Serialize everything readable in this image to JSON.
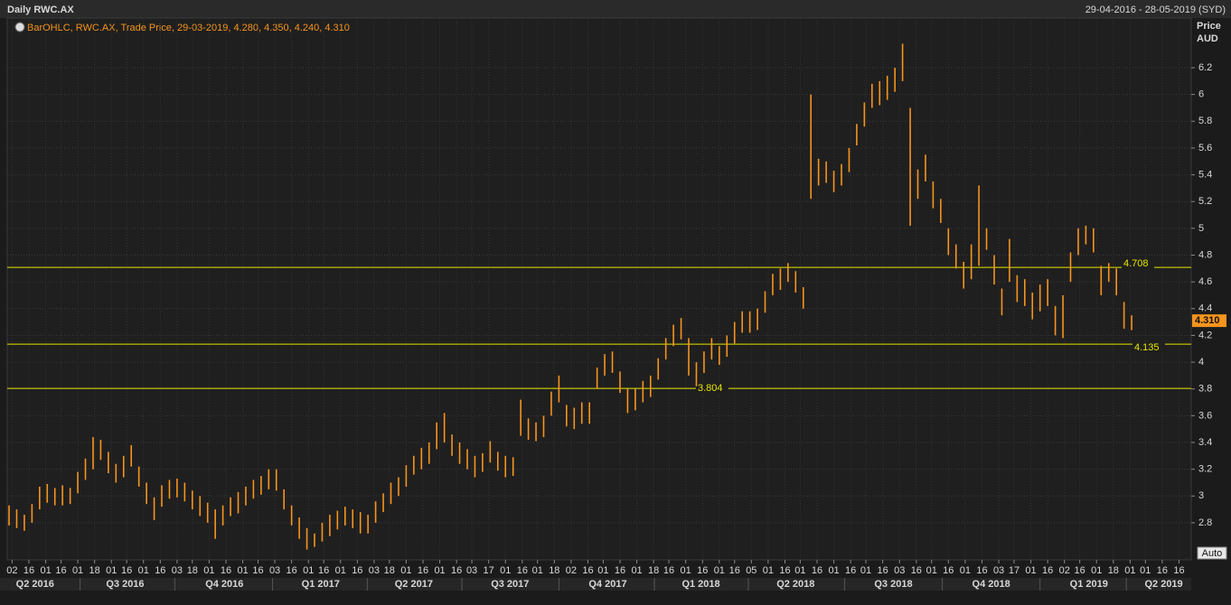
{
  "chart_data": {
    "type": "ohlc",
    "title": "Daily RWC.AX",
    "date_range": "29-04-2016 - 28-05-2019 (SYD)",
    "legend": "BarOHLC, RWC.AX, Trade Price, 29-03-2019, 4.280, 4.350, 4.240, 4.310",
    "y_axis_label": [
      "Price",
      "AUD"
    ],
    "auto_button": "Auto",
    "color": "#f7941d",
    "line_color": "#e6e600",
    "grid": true,
    "ylim": [
      2.523,
      6.571
    ],
    "yticks": [
      2.8,
      3,
      3.2,
      3.4,
      3.6,
      3.8,
      4,
      4.2,
      4.4,
      4.6,
      4.8,
      5,
      5.2,
      5.4,
      5.6,
      5.8,
      6,
      6.2
    ],
    "xlim": [
      -1.2,
      774
    ],
    "xticks": [
      {
        "value": 2,
        "label": "02"
      },
      {
        "value": 13,
        "label": "16"
      },
      {
        "value": 24,
        "label": "01"
      },
      {
        "value": 34,
        "label": "16"
      },
      {
        "value": 45,
        "label": "01"
      },
      {
        "value": 56,
        "label": "18"
      },
      {
        "value": 67,
        "label": "01"
      },
      {
        "value": 77,
        "label": "16"
      },
      {
        "value": 88,
        "label": "01"
      },
      {
        "value": 99,
        "label": "16"
      },
      {
        "value": 110,
        "label": "03"
      },
      {
        "value": 120,
        "label": "18"
      },
      {
        "value": 131,
        "label": "01"
      },
      {
        "value": 142,
        "label": "16"
      },
      {
        "value": 153,
        "label": "01"
      },
      {
        "value": 163,
        "label": "16"
      },
      {
        "value": 174,
        "label": "03"
      },
      {
        "value": 185,
        "label": "16"
      },
      {
        "value": 196,
        "label": "01"
      },
      {
        "value": 206,
        "label": "16"
      },
      {
        "value": 217,
        "label": "01"
      },
      {
        "value": 228,
        "label": "16"
      },
      {
        "value": 239,
        "label": "03"
      },
      {
        "value": 249,
        "label": "18"
      },
      {
        "value": 260,
        "label": "01"
      },
      {
        "value": 271,
        "label": "16"
      },
      {
        "value": 282,
        "label": "01"
      },
      {
        "value": 293,
        "label": "16"
      },
      {
        "value": 303,
        "label": "03"
      },
      {
        "value": 314,
        "label": "17"
      },
      {
        "value": 325,
        "label": "01"
      },
      {
        "value": 336,
        "label": "16"
      },
      {
        "value": 346,
        "label": "01"
      },
      {
        "value": 357,
        "label": "18"
      },
      {
        "value": 368,
        "label": "02"
      },
      {
        "value": 379,
        "label": "16"
      },
      {
        "value": 389,
        "label": "01"
      },
      {
        "value": 400,
        "label": "16"
      },
      {
        "value": 411,
        "label": "01"
      },
      {
        "value": 422,
        "label": "18"
      },
      {
        "value": 432,
        "label": "16"
      },
      {
        "value": 443,
        "label": "01"
      },
      {
        "value": 454,
        "label": "16"
      },
      {
        "value": 465,
        "label": "01"
      },
      {
        "value": 475,
        "label": "16"
      },
      {
        "value": 486,
        "label": "05"
      },
      {
        "value": 497,
        "label": "01"
      },
      {
        "value": 508,
        "label": "16"
      },
      {
        "value": 518,
        "label": "01"
      },
      {
        "value": 529,
        "label": "16"
      },
      {
        "value": 540,
        "label": "01"
      },
      {
        "value": 551,
        "label": "16"
      },
      {
        "value": 561,
        "label": "01"
      },
      {
        "value": 572,
        "label": "16"
      },
      {
        "value": 583,
        "label": "03"
      },
      {
        "value": 594,
        "label": "16"
      },
      {
        "value": 604,
        "label": "01"
      },
      {
        "value": 615,
        "label": "16"
      },
      {
        "value": 626,
        "label": "01"
      },
      {
        "value": 637,
        "label": "16"
      },
      {
        "value": 648,
        "label": "03"
      },
      {
        "value": 658,
        "label": "17"
      },
      {
        "value": 669,
        "label": "01"
      },
      {
        "value": 680,
        "label": "16"
      },
      {
        "value": 691,
        "label": "02"
      },
      {
        "value": 701,
        "label": "16"
      },
      {
        "value": 712,
        "label": "01"
      },
      {
        "value": 723,
        "label": "18"
      },
      {
        "value": 734,
        "label": "01"
      },
      {
        "value": 744,
        "label": "01"
      },
      {
        "value": 755,
        "label": "16"
      },
      {
        "value": 766,
        "label": "16"
      }
    ],
    "quarter_ticks": [
      {
        "value": 17,
        "label": "Q2 2016"
      },
      {
        "value": 76,
        "label": "Q3 2016"
      },
      {
        "value": 141,
        "label": "Q4 2016"
      },
      {
        "value": 204,
        "label": "Q1 2017"
      },
      {
        "value": 265,
        "label": "Q2 2017"
      },
      {
        "value": 328,
        "label": "Q3 2017"
      },
      {
        "value": 392,
        "label": "Q4 2017"
      },
      {
        "value": 453,
        "label": "Q1 2018"
      },
      {
        "value": 515,
        "label": "Q2 2018"
      },
      {
        "value": 579,
        "label": "Q3 2018"
      },
      {
        "value": 643,
        "label": "Q4 2018"
      },
      {
        "value": 707,
        "label": "Q1 2019"
      },
      {
        "value": 756,
        "label": "Q2 2019"
      }
    ],
    "hlines": [
      4.708,
      4.135,
      3.804
    ],
    "last_price": {
      "value": 4.31,
      "label": "4.310"
    },
    "series": [
      {
        "name": "RWC.AX",
        "x": [
          0,
          5,
          10,
          15,
          20,
          25,
          30,
          35,
          40,
          45,
          50,
          55,
          60,
          65,
          70,
          75,
          80,
          85,
          90,
          95,
          100,
          105,
          110,
          115,
          120,
          125,
          130,
          135,
          140,
          145,
          150,
          155,
          160,
          165,
          170,
          175,
          180,
          185,
          190,
          195,
          200,
          205,
          210,
          215,
          220,
          225,
          230,
          235,
          240,
          245,
          250,
          255,
          260,
          265,
          270,
          275,
          280,
          285,
          290,
          295,
          300,
          305,
          310,
          315,
          320,
          325,
          330,
          335,
          340,
          345,
          350,
          355,
          360,
          365,
          370,
          375,
          380,
          385,
          390,
          395,
          400,
          405,
          410,
          415,
          420,
          425,
          430,
          435,
          440,
          445,
          450,
          455,
          460,
          465,
          470,
          475,
          480,
          485,
          490,
          495,
          500,
          505,
          510,
          515,
          520,
          525,
          530,
          535,
          540,
          545,
          550,
          555,
          560,
          565,
          570,
          575,
          580,
          585,
          590,
          595,
          600,
          605,
          610,
          615,
          620,
          625,
          630,
          635,
          640,
          645,
          650,
          655,
          660,
          665,
          670,
          675,
          680,
          685,
          690,
          695,
          700,
          705,
          710,
          715,
          720,
          725,
          730,
          735
        ],
        "high": [
          2.93,
          2.9,
          2.86,
          2.94,
          3.07,
          3.09,
          3.06,
          3.08,
          3.06,
          3.18,
          3.28,
          3.44,
          3.42,
          3.33,
          3.24,
          3.3,
          3.38,
          3.22,
          3.1,
          2.99,
          3.08,
          3.12,
          3.13,
          3.1,
          3.04,
          3.0,
          2.95,
          2.9,
          2.93,
          2.99,
          3.03,
          3.07,
          3.12,
          3.15,
          3.2,
          3.2,
          3.05,
          2.93,
          2.84,
          2.76,
          2.72,
          2.8,
          2.86,
          2.89,
          2.92,
          2.9,
          2.88,
          2.86,
          2.96,
          3.02,
          3.1,
          3.14,
          3.23,
          3.3,
          3.36,
          3.4,
          3.55,
          3.62,
          3.46,
          3.4,
          3.35,
          3.3,
          3.32,
          3.41,
          3.33,
          3.3,
          3.29,
          3.72,
          3.58,
          3.55,
          3.6,
          3.78,
          3.9,
          3.68,
          3.66,
          3.7,
          3.7,
          3.96,
          4.06,
          4.08,
          3.93,
          3.8,
          3.8,
          3.86,
          3.9,
          4.03,
          4.18,
          4.28,
          4.33,
          4.18,
          4.0,
          4.08,
          4.18,
          4.12,
          4.2,
          4.3,
          4.38,
          4.38,
          4.4,
          4.53,
          4.66,
          4.7,
          4.74,
          4.68,
          4.56,
          6.0,
          5.52,
          5.5,
          5.43,
          5.48,
          5.6,
          5.78,
          5.94,
          6.08,
          6.1,
          6.14,
          6.2,
          6.38,
          5.9,
          5.44,
          5.55,
          5.35,
          5.22,
          5.0,
          4.88,
          4.75,
          4.88,
          5.32,
          5.0,
          4.8,
          4.55,
          4.92,
          4.65,
          4.62,
          4.52,
          4.58,
          4.62,
          4.42,
          4.5,
          4.82,
          5.0,
          5.02,
          5.0,
          4.72,
          4.74,
          4.7,
          4.45,
          4.35
        ],
        "low": [
          2.78,
          2.76,
          2.74,
          2.8,
          2.9,
          2.95,
          2.93,
          2.93,
          2.94,
          3.02,
          3.12,
          3.2,
          3.27,
          3.17,
          3.1,
          3.14,
          3.22,
          3.07,
          2.94,
          2.82,
          2.92,
          2.98,
          2.99,
          2.96,
          2.9,
          2.85,
          2.8,
          2.68,
          2.78,
          2.85,
          2.87,
          2.93,
          2.98,
          3.01,
          3.05,
          3.04,
          2.9,
          2.78,
          2.68,
          2.6,
          2.62,
          2.66,
          2.7,
          2.75,
          2.78,
          2.76,
          2.72,
          2.72,
          2.8,
          2.88,
          2.94,
          3.0,
          3.07,
          3.16,
          3.2,
          3.24,
          3.35,
          3.4,
          3.3,
          3.24,
          3.2,
          3.14,
          3.18,
          3.25,
          3.19,
          3.14,
          3.15,
          3.45,
          3.42,
          3.41,
          3.44,
          3.6,
          3.7,
          3.52,
          3.5,
          3.54,
          3.54,
          3.8,
          3.9,
          3.92,
          3.77,
          3.62,
          3.64,
          3.7,
          3.74,
          3.87,
          4.02,
          4.12,
          4.17,
          3.9,
          3.82,
          3.92,
          4.02,
          3.98,
          4.04,
          4.14,
          4.22,
          4.22,
          4.24,
          4.37,
          4.5,
          4.54,
          4.6,
          4.52,
          4.4,
          5.22,
          5.32,
          5.34,
          5.27,
          5.32,
          5.42,
          5.62,
          5.76,
          5.9,
          5.92,
          5.96,
          6.02,
          6.1,
          5.02,
          5.22,
          5.35,
          5.15,
          5.04,
          4.8,
          4.7,
          4.55,
          4.62,
          4.72,
          4.84,
          4.58,
          4.35,
          4.6,
          4.45,
          4.42,
          4.32,
          4.38,
          4.42,
          4.2,
          4.18,
          4.6,
          4.8,
          4.88,
          4.82,
          4.5,
          4.6,
          4.5,
          4.25,
          4.24
        ]
      }
    ]
  }
}
